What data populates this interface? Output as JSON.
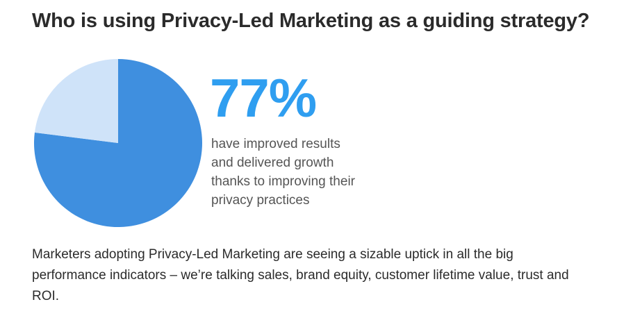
{
  "header": {
    "title": "Who is using Privacy-Led Marketing as a guiding strategy?"
  },
  "infographic": {
    "stat": "77%",
    "caption_lines": [
      "have improved results",
      "and delivered growth",
      "thanks to improving their",
      "privacy practices"
    ]
  },
  "chart_data": {
    "type": "pie",
    "slices": [
      {
        "value": 77,
        "color": "#3f8fdf"
      },
      {
        "value": 23,
        "color": "#cfe3f9"
      }
    ],
    "start_angle_deg": 0,
    "direction": "clockwise"
  },
  "body": {
    "lines": [
      "Marketers adopting Privacy-Led Marketing are seeing a sizable uptick in all the big",
      "performance indicators – we’re talking sales, brand equity, customer lifetime value, trust and",
      "ROI."
    ]
  },
  "colors": {
    "accent": "#2f9ef0",
    "pie_main": "#3f8fdf",
    "pie_rest": "#cfe3f9",
    "caption": "#555555",
    "text": "#2b2b2b"
  }
}
